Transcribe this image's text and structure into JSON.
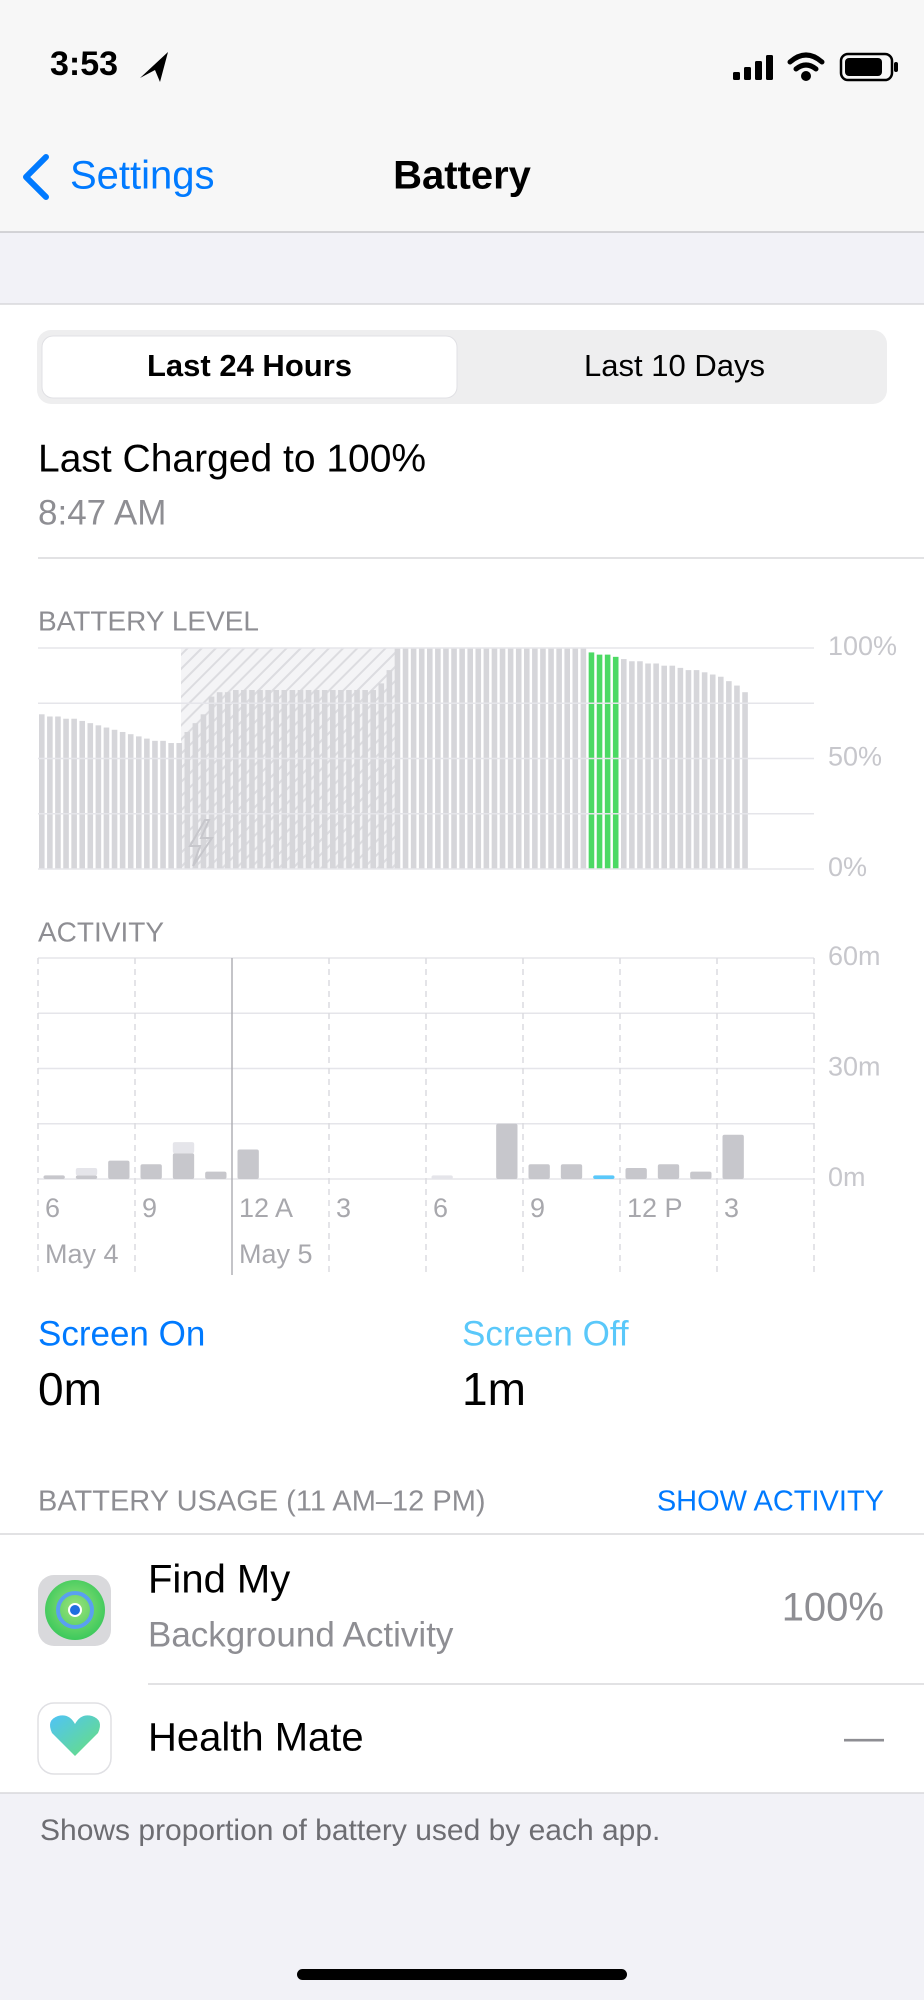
{
  "status_bar": {
    "time": "3:53"
  },
  "nav": {
    "back": "Settings",
    "title": "Battery"
  },
  "segmented": {
    "options": [
      "Last 24 Hours",
      "Last 10 Days"
    ],
    "selected": 0
  },
  "last_charged": {
    "title": "Last Charged to 100%",
    "time": "8:47 AM"
  },
  "battery_level": {
    "type": "bar",
    "title": "BATTERY LEVEL",
    "values": [
      70,
      69,
      69,
      68,
      68,
      67,
      66,
      65,
      64,
      63,
      62,
      61,
      60,
      59,
      58,
      58,
      57,
      57,
      62,
      66,
      70,
      78,
      80,
      80,
      81,
      81,
      81,
      81,
      81,
      81,
      81,
      81,
      81,
      81,
      81,
      81,
      81,
      81,
      81,
      81,
      81,
      81,
      84,
      90,
      100,
      100,
      100,
      100,
      100,
      100,
      100,
      100,
      100,
      100,
      100,
      100,
      100,
      100,
      100,
      100,
      100,
      100,
      100,
      100,
      100,
      100,
      100,
      100,
      98,
      97,
      97,
      96,
      95,
      94,
      94,
      93,
      93,
      92,
      92,
      91,
      90,
      90,
      89,
      88,
      87,
      85,
      83,
      80
    ],
    "color": "#d6d6da",
    "selected": [
      68,
      69,
      70,
      71
    ],
    "selected_color": "#4cd964",
    "ylim": [
      0,
      100
    ],
    "gridlines": [
      0,
      25,
      50,
      75,
      100
    ],
    "yticks": [
      {
        "value": 100,
        "label": "100%"
      },
      {
        "value": 50,
        "label": "50%"
      },
      {
        "value": 0,
        "label": "0%"
      }
    ]
  },
  "activity": {
    "type": "stacked-bar",
    "title": "ACTIVITY",
    "xlim": [
      0,
      24
    ],
    "xticks": [
      {
        "value": 0,
        "label": "6"
      },
      {
        "value": 3,
        "label": "9"
      },
      {
        "value": 6,
        "label": "12 A"
      },
      {
        "value": 9,
        "label": "3"
      },
      {
        "value": 12,
        "label": "6"
      },
      {
        "value": 15,
        "label": "9"
      },
      {
        "value": 18,
        "label": "12 P"
      },
      {
        "value": 21,
        "label": "3"
      }
    ],
    "dates": [
      {
        "value": 0,
        "label": "May 4"
      },
      {
        "value": 6,
        "label": "May 5"
      }
    ],
    "ylim": [
      0,
      60
    ],
    "gridlines": [
      0,
      15,
      30,
      45,
      60
    ],
    "yticks": [
      {
        "value": 60,
        "label": "60m"
      },
      {
        "value": 30,
        "label": "30m"
      },
      {
        "value": 0,
        "label": "0m"
      }
    ],
    "selected_index": 17,
    "series": [
      {
        "name": "Screen On",
        "color": "#c7c7cc",
        "selected_color": "#007aff",
        "values": [
          1,
          1,
          5,
          4,
          7,
          2,
          8,
          0,
          0,
          0,
          0,
          0,
          0,
          0,
          15,
          4,
          4,
          0,
          3,
          4,
          2,
          12,
          null,
          null
        ]
      },
      {
        "name": "Screen Off",
        "color": "#e5e5ea",
        "selected_color": "#5ac8fa",
        "values": [
          0,
          2,
          0,
          0,
          3,
          0,
          0,
          0,
          0,
          0,
          0,
          0,
          1,
          0,
          0,
          0,
          0,
          1,
          0,
          0,
          0,
          0,
          null,
          null
        ]
      }
    ]
  },
  "summary": {
    "screen_on": {
      "label": "Screen On",
      "value": "0m"
    },
    "screen_off": {
      "label": "Screen Off",
      "value": "1m"
    }
  },
  "usage": {
    "header": "BATTERY USAGE (11 AM–12 PM)",
    "action": "SHOW ACTIVITY",
    "apps": [
      {
        "name": "Find My",
        "detail": "Background Activity",
        "value": "100%"
      },
      {
        "name": "Health Mate",
        "value": "—"
      }
    ]
  },
  "footer": "Shows proportion of battery used by each app."
}
